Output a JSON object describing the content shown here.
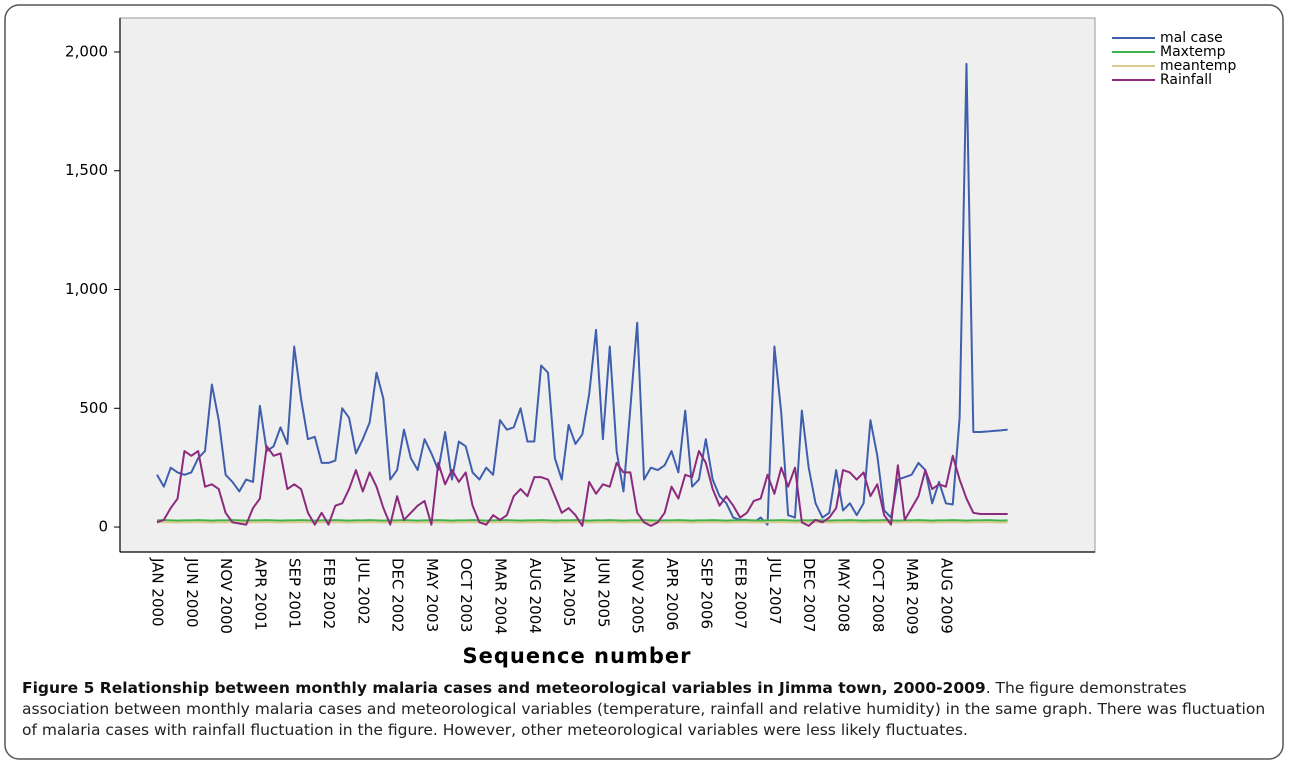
{
  "chart_data": {
    "type": "line",
    "x_label": "Sequence number",
    "categories": [
      "JAN 2000",
      null,
      null,
      null,
      null,
      "JUN 2000",
      null,
      null,
      null,
      null,
      "NOV 2000",
      null,
      null,
      null,
      null,
      "APR 2001",
      null,
      null,
      null,
      null,
      "SEP 2001",
      null,
      null,
      null,
      null,
      "FEB 2002",
      null,
      null,
      null,
      null,
      "JUL 2002",
      null,
      null,
      null,
      null,
      "DEC 2002",
      null,
      null,
      null,
      null,
      "MAY 2003",
      null,
      null,
      null,
      null,
      "OCT 2003",
      null,
      null,
      null,
      null,
      "MAR 2004",
      null,
      null,
      null,
      null,
      "AUG 2004",
      null,
      null,
      null,
      null,
      "JAN 2005",
      null,
      null,
      null,
      null,
      "JUN 2005",
      null,
      null,
      null,
      null,
      "NOV 2005",
      null,
      null,
      null,
      null,
      "APR 2006",
      null,
      null,
      null,
      null,
      "SEP 2006",
      null,
      null,
      null,
      null,
      "FEB 2007",
      null,
      null,
      null,
      null,
      "JUL 2007",
      null,
      null,
      null,
      null,
      "DEC 2007",
      null,
      null,
      null,
      null,
      "MAY 2008",
      null,
      null,
      null,
      null,
      "OCT 2008",
      null,
      null,
      null,
      null,
      "MAR 2009",
      null,
      null,
      null,
      null,
      "AUG 2009",
      null,
      null,
      null,
      null,
      null,
      null,
      null,
      null,
      null
    ],
    "series": [
      {
        "name": "mal case",
        "color": "#3f5fae",
        "values": [
          220,
          170,
          250,
          230,
          220,
          230,
          290,
          320,
          600,
          450,
          220,
          190,
          150,
          200,
          190,
          510,
          320,
          340,
          420,
          350,
          760,
          540,
          370,
          380,
          270,
          270,
          280,
          500,
          460,
          310,
          370,
          440,
          650,
          540,
          200,
          240,
          410,
          290,
          240,
          370,
          310,
          240,
          400,
          200,
          360,
          340,
          230,
          200,
          250,
          220,
          450,
          410,
          420,
          500,
          360,
          360,
          680,
          650,
          290,
          200,
          430,
          350,
          390,
          560,
          830,
          370,
          760,
          320,
          150,
          500,
          860,
          200,
          250,
          240,
          260,
          320,
          230,
          490,
          170,
          200,
          370,
          200,
          130,
          100,
          40,
          30,
          30,
          20,
          40,
          10,
          760,
          480,
          50,
          40,
          490,
          250,
          100,
          40,
          60,
          240,
          70,
          100,
          50,
          100,
          450,
          300,
          70,
          40,
          200,
          210,
          220,
          270,
          240,
          100,
          190,
          100,
          95,
          460,
          1950,
          400,
          400,
          402,
          405,
          407,
          410
        ]
      },
      {
        "name": "Maxtemp",
        "color": "#3cb44b",
        "values": [
          28,
          29,
          28,
          27,
          28,
          28,
          29,
          28,
          27,
          28,
          28,
          29,
          28,
          27,
          28,
          28,
          29,
          28,
          27,
          28,
          28,
          29,
          28,
          27,
          28,
          28,
          29,
          28,
          27,
          28,
          28,
          29,
          28,
          27,
          28,
          28,
          29,
          28,
          27,
          28,
          28,
          29,
          28,
          27,
          28,
          28,
          29,
          28,
          27,
          28,
          28,
          29,
          28,
          27,
          28,
          28,
          29,
          28,
          27,
          28,
          28,
          29,
          28,
          27,
          28,
          28,
          29,
          28,
          27,
          28,
          28,
          29,
          28,
          27,
          28,
          28,
          29,
          28,
          27,
          28,
          28,
          29,
          28,
          27,
          28,
          28,
          29,
          28,
          27,
          28,
          28,
          29,
          28,
          27,
          28,
          28,
          29,
          28,
          27,
          28,
          28,
          29,
          28,
          27,
          28,
          28,
          29,
          28,
          27,
          28,
          28,
          29,
          28,
          27,
          28,
          28,
          29,
          28,
          27,
          28,
          28,
          29,
          28,
          27,
          28
        ]
      },
      {
        "name": "meantemp",
        "color": "#d9c98c",
        "values": [
          20,
          21,
          20,
          19,
          20,
          20,
          21,
          20,
          19,
          20,
          20,
          21,
          20,
          19,
          20,
          20,
          21,
          20,
          19,
          20,
          20,
          21,
          20,
          19,
          20,
          20,
          21,
          20,
          19,
          20,
          20,
          21,
          20,
          19,
          20,
          20,
          21,
          20,
          19,
          20,
          20,
          21,
          20,
          19,
          20,
          20,
          21,
          20,
          19,
          20,
          20,
          21,
          20,
          19,
          20,
          20,
          21,
          20,
          19,
          20,
          20,
          21,
          20,
          19,
          20,
          20,
          21,
          20,
          19,
          20,
          20,
          21,
          20,
          19,
          20,
          20,
          21,
          20,
          19,
          20,
          20,
          21,
          20,
          19,
          20,
          20,
          21,
          20,
          19,
          20,
          20,
          21,
          20,
          19,
          20,
          20,
          21,
          20,
          19,
          20,
          20,
          21,
          20,
          19,
          20,
          20,
          21,
          20,
          19,
          20,
          20,
          21,
          20,
          19,
          20,
          20,
          21,
          20,
          19,
          20,
          20,
          21,
          20,
          19,
          20
        ]
      },
      {
        "name": "Rainfall",
        "color": "#8c2a7e",
        "values": [
          20,
          30,
          80,
          120,
          320,
          300,
          320,
          170,
          180,
          160,
          60,
          20,
          15,
          10,
          80,
          120,
          340,
          300,
          310,
          160,
          180,
          160,
          60,
          10,
          60,
          10,
          90,
          100,
          160,
          240,
          150,
          230,
          170,
          80,
          10,
          130,
          30,
          60,
          90,
          110,
          10,
          270,
          180,
          240,
          190,
          230,
          90,
          20,
          10,
          50,
          30,
          50,
          130,
          160,
          130,
          210,
          210,
          200,
          130,
          60,
          80,
          50,
          5,
          190,
          140,
          180,
          170,
          270,
          230,
          230,
          60,
          20,
          5,
          20,
          60,
          170,
          120,
          220,
          210,
          320,
          270,
          160,
          90,
          130,
          90,
          40,
          60,
          110,
          120,
          220,
          140,
          250,
          170,
          250,
          20,
          5,
          30,
          20,
          40,
          80,
          240,
          230,
          200,
          230,
          130,
          180,
          50,
          10,
          260,
          30,
          80,
          130,
          240,
          160,
          180,
          170,
          300,
          200,
          120,
          60,
          55,
          55,
          55,
          55,
          55
        ]
      }
    ],
    "ylim": [
      -105,
      2143
    ],
    "yticks": [
      0,
      500,
      {
        "value": 1000,
        "label": "1,000"
      },
      {
        "value": 1500,
        "label": "1,500"
      },
      {
        "value": 2000,
        "label": "2,000"
      }
    ],
    "grid": false,
    "legend": "upper right"
  },
  "caption": {
    "label": "Figure 5 Relationship between monthly malaria cases and meteorological variables in Jimma town, 2000-2009",
    "text": ". The figure demonstrates association between monthly malaria cases and meteorological variables (temperature, rainfall and relative humidity) in the same graph. There was fluctuation of malaria cases with rainfall fluctuation in the figure. However, other meteorological variables were less likely fluctuates."
  }
}
